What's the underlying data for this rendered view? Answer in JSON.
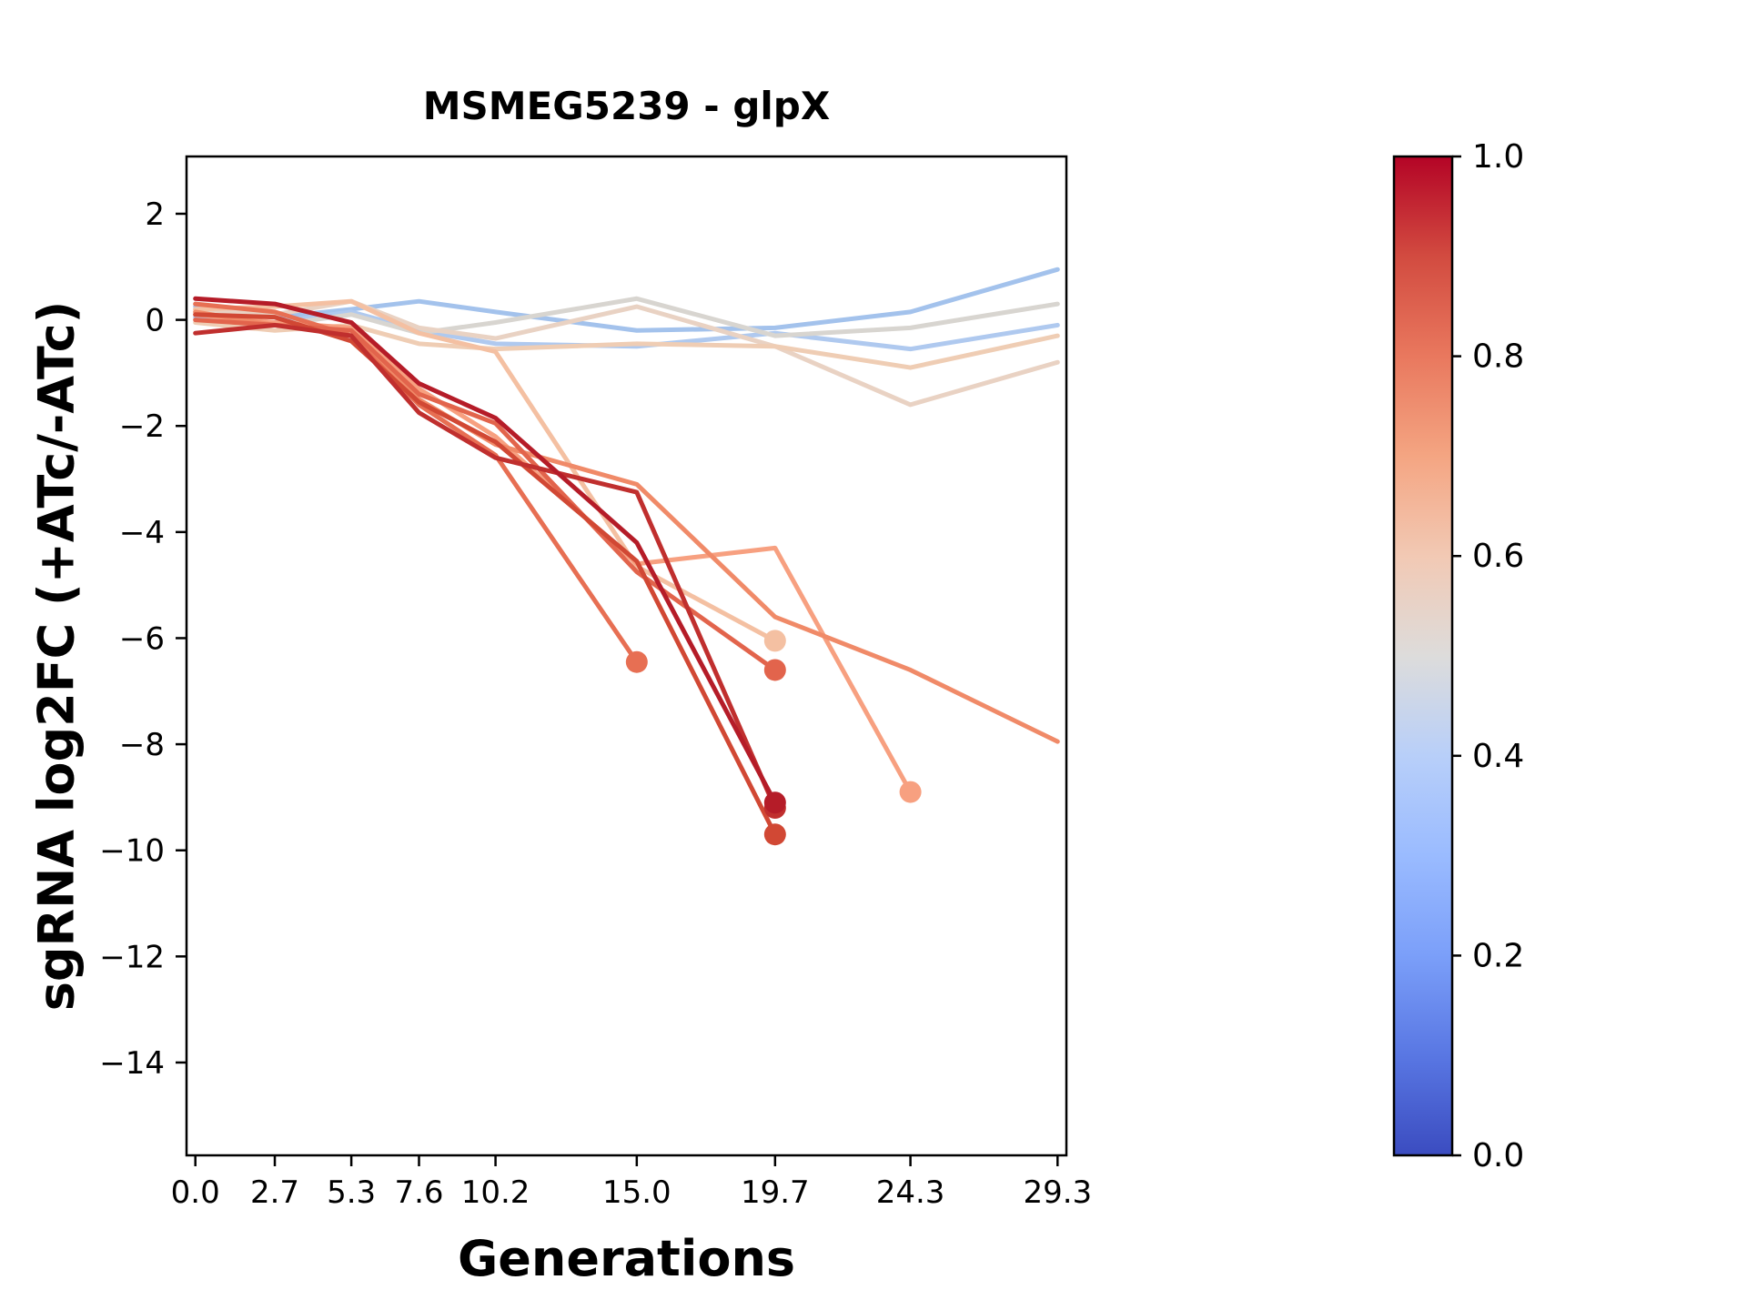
{
  "chart_data": {
    "type": "line",
    "title": "MSMEG5239 - glpX",
    "xlabel": "Generations",
    "ylabel": "sgRNA log2FC (+ATc/-ATc)",
    "x_ticks": [
      0.0,
      2.7,
      5.3,
      7.6,
      10.2,
      15.0,
      19.7,
      24.3,
      29.3
    ],
    "x_tick_labels": [
      "0.0",
      "2.7",
      "5.3",
      "7.6",
      "10.2",
      "15.0",
      "19.7",
      "24.3",
      "29.3"
    ],
    "y_ticks": [
      2,
      0,
      -2,
      -4,
      -6,
      -8,
      -10,
      -12,
      -14
    ],
    "y_tick_labels": [
      "2",
      "0",
      "−2",
      "−4",
      "−6",
      "−8",
      "−10",
      "−12",
      "−14"
    ],
    "xlim": [
      -0.3,
      29.6
    ],
    "ylim": [
      -15.75,
      3.08
    ],
    "grid": false,
    "line_width": 5,
    "marker_radius": 12,
    "series": [
      {
        "name": "flat-blue-1",
        "color": "#A3C2EC",
        "color_value": 0.37,
        "end_marker": false,
        "x": [
          0.0,
          2.7,
          5.3,
          7.6,
          10.2,
          15.0,
          19.7,
          24.3,
          29.3
        ],
        "y": [
          0.25,
          0.05,
          0.2,
          0.35,
          0.15,
          -0.2,
          -0.15,
          0.15,
          0.95
        ]
      },
      {
        "name": "flat-blue-2",
        "color": "#AFC9EF",
        "color_value": 0.4,
        "end_marker": false,
        "x": [
          0.0,
          2.7,
          5.3,
          7.6,
          10.2,
          15.0,
          19.7,
          24.3,
          29.3
        ],
        "y": [
          0.05,
          -0.05,
          0.15,
          -0.2,
          -0.45,
          -0.5,
          -0.25,
          -0.55,
          -0.1
        ]
      },
      {
        "name": "flat-gray",
        "color": "#D8D5D0",
        "color_value": 0.51,
        "end_marker": false,
        "x": [
          0.0,
          2.7,
          5.3,
          7.6,
          10.2,
          15.0,
          19.7,
          24.3,
          29.3
        ],
        "y": [
          0.15,
          -0.1,
          0.1,
          -0.25,
          -0.05,
          0.4,
          -0.3,
          -0.15,
          0.3
        ]
      },
      {
        "name": "flat-tan-1",
        "color": "#E9D2C3",
        "color_value": 0.57,
        "end_marker": false,
        "x": [
          0.0,
          2.7,
          5.3,
          7.6,
          10.2,
          15.0,
          19.7,
          24.3,
          29.3
        ],
        "y": [
          0.2,
          0.1,
          0.35,
          -0.15,
          -0.35,
          0.25,
          -0.5,
          -1.6,
          -0.8
        ]
      },
      {
        "name": "flat-tan-2",
        "color": "#EFCDB4",
        "color_value": 0.61,
        "end_marker": false,
        "x": [
          0.0,
          2.7,
          5.3,
          7.6,
          10.2,
          15.0,
          19.7,
          24.3,
          29.3
        ],
        "y": [
          -0.05,
          -0.2,
          -0.1,
          -0.45,
          -0.55,
          -0.45,
          -0.5,
          -0.9,
          -0.3
        ]
      },
      {
        "name": "decline-pink",
        "color": "#F4C0A2",
        "color_value": 0.64,
        "end_marker": true,
        "x": [
          0.0,
          2.7,
          5.3,
          7.6,
          10.2,
          15.0,
          19.7
        ],
        "y": [
          0.2,
          0.25,
          0.35,
          -0.25,
          -0.6,
          -4.65,
          -6.05
        ]
      },
      {
        "name": "decline-salmon-24",
        "color": "#F7A080",
        "color_value": 0.7,
        "end_marker": true,
        "x": [
          0.0,
          2.7,
          5.3,
          7.6,
          10.2,
          15.0,
          19.7,
          24.3
        ],
        "y": [
          0.1,
          -0.05,
          -0.15,
          -1.3,
          -2.2,
          -4.6,
          -4.3,
          -8.9
        ]
      },
      {
        "name": "decline-salmon-29",
        "color": "#F08A68",
        "color_value": 0.76,
        "end_marker": false,
        "x": [
          0.0,
          2.7,
          5.3,
          7.6,
          10.2,
          15.0,
          19.7,
          24.3,
          29.3
        ],
        "y": [
          0.15,
          -0.1,
          -0.2,
          -1.5,
          -2.35,
          -3.1,
          -5.6,
          -6.6,
          -7.95
        ]
      },
      {
        "name": "decline-red-15",
        "color": "#E76F53",
        "color_value": 0.81,
        "end_marker": true,
        "x": [
          0.0,
          2.7,
          5.3,
          7.6,
          10.2,
          15.0
        ],
        "y": [
          0.3,
          0.15,
          -0.3,
          -1.6,
          -2.55,
          -6.45
        ]
      },
      {
        "name": "decline-red-19",
        "color": "#E2644C",
        "color_value": 0.83,
        "end_marker": true,
        "x": [
          0.0,
          2.7,
          5.3,
          7.6,
          10.2,
          15.0,
          19.7
        ],
        "y": [
          0.0,
          -0.1,
          -0.2,
          -1.4,
          -1.95,
          -4.75,
          -6.6
        ]
      },
      {
        "name": "decline-red-deep",
        "color": "#D14834",
        "color_value": 0.89,
        "end_marker": true,
        "x": [
          0.0,
          2.7,
          5.3,
          7.6,
          10.2,
          15.0,
          19.7
        ],
        "y": [
          0.1,
          0.05,
          -0.4,
          -1.55,
          -2.3,
          -4.55,
          -9.7
        ]
      },
      {
        "name": "decline-darkred-2",
        "color": "#C02F2E",
        "color_value": 0.94,
        "end_marker": true,
        "x": [
          0.0,
          2.7,
          5.3,
          7.6,
          10.2,
          15.0,
          19.7
        ],
        "y": [
          -0.25,
          -0.1,
          -0.3,
          -1.75,
          -2.6,
          -3.25,
          -9.2
        ]
      },
      {
        "name": "decline-darkred-1",
        "color": "#B51C28",
        "color_value": 0.98,
        "end_marker": true,
        "x": [
          0.0,
          2.7,
          5.3,
          7.6,
          10.2,
          15.0,
          19.7
        ],
        "y": [
          0.4,
          0.3,
          -0.05,
          -1.2,
          -1.85,
          -4.2,
          -9.1
        ]
      }
    ],
    "colorbar": {
      "min": 0.0,
      "max": 1.0,
      "colormap": "coolwarm",
      "ticks": [
        {
          "value": 1.0,
          "label": "1.0"
        },
        {
          "value": 0.8,
          "label": "0.8"
        },
        {
          "value": 0.6,
          "label": "0.6"
        },
        {
          "value": 0.4,
          "label": "0.4"
        },
        {
          "value": 0.2,
          "label": "0.2"
        },
        {
          "value": 0.0,
          "label": "0.0"
        }
      ],
      "stops": [
        {
          "pos": 0.0,
          "color": "#3B4CC0"
        },
        {
          "pos": 0.1,
          "color": "#5977E3"
        },
        {
          "pos": 0.2,
          "color": "#7B9FF9"
        },
        {
          "pos": 0.3,
          "color": "#9ABBFF"
        },
        {
          "pos": 0.4,
          "color": "#B8CFF9"
        },
        {
          "pos": 0.5,
          "color": "#DDDCDB"
        },
        {
          "pos": 0.6,
          "color": "#F2C9B4"
        },
        {
          "pos": 0.7,
          "color": "#F4A582"
        },
        {
          "pos": 0.8,
          "color": "#E9785E"
        },
        {
          "pos": 0.9,
          "color": "#D24B40"
        },
        {
          "pos": 1.0,
          "color": "#B40426"
        }
      ]
    }
  }
}
